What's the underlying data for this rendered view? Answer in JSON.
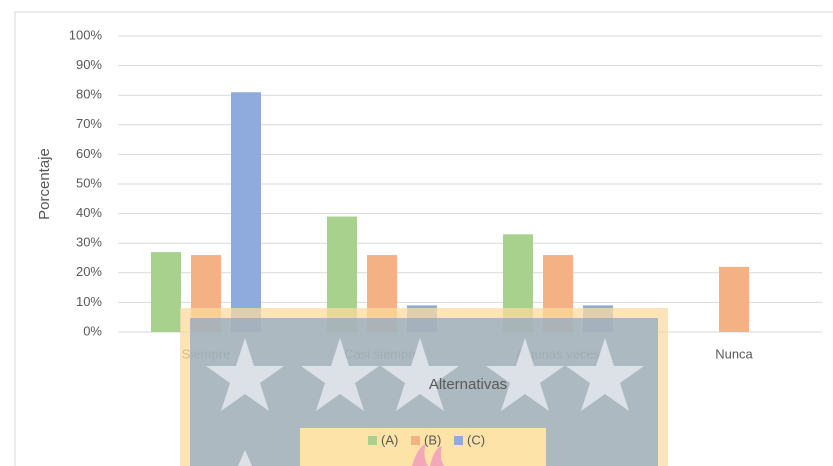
{
  "chart_data": {
    "type": "bar",
    "y_label": "Porcentaje",
    "x_label": "Alternativas",
    "categories": [
      "Siempre",
      "Casi siempre",
      "Algunas veces",
      "Nunca"
    ],
    "series": [
      {
        "name": "(A)",
        "color": "#a9d18e",
        "values": [
          27,
          39,
          33,
          null
        ]
      },
      {
        "name": "(B)",
        "color": "#f4b183",
        "values": [
          26,
          26,
          26,
          22
        ]
      },
      {
        "name": "(C)",
        "color": "#8faadc",
        "values": [
          81,
          9,
          9,
          null
        ]
      }
    ],
    "ylim": [
      0,
      100
    ],
    "yticks": [
      {
        "value": 0,
        "label": "0%"
      },
      {
        "value": 10,
        "label": "10%"
      },
      {
        "value": 20,
        "label": "20%"
      },
      {
        "value": 30,
        "label": "30%"
      },
      {
        "value": 40,
        "label": "40%"
      },
      {
        "value": 50,
        "label": "50%"
      },
      {
        "value": 60,
        "label": "60%"
      },
      {
        "value": 70,
        "label": "70%"
      },
      {
        "value": 80,
        "label": "80%"
      },
      {
        "value": 90,
        "label": "90%"
      },
      {
        "value": 100,
        "label": "100%"
      }
    ],
    "grid": true,
    "legend": "bottom"
  }
}
